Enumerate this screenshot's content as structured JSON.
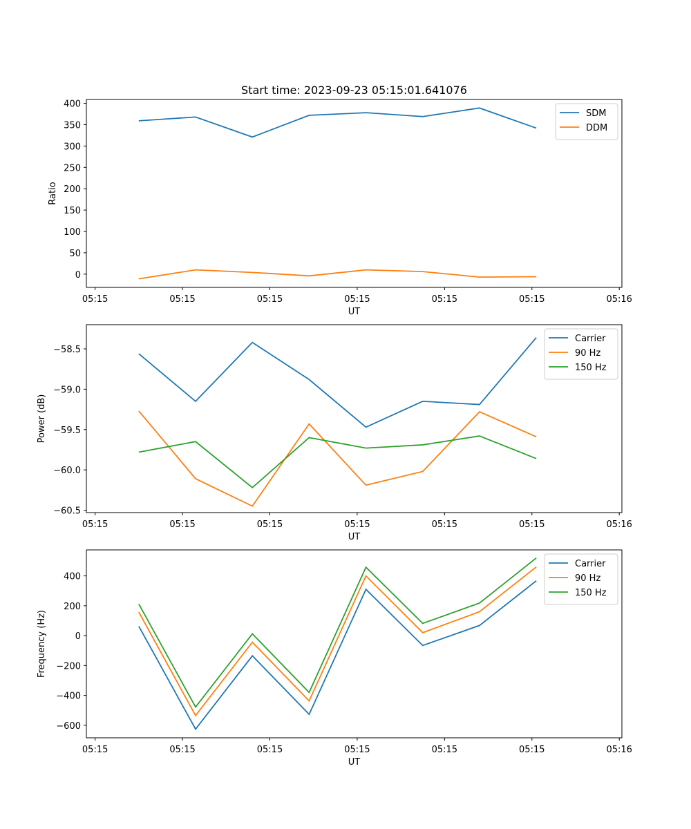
{
  "chart_data": [
    {
      "type": "line",
      "title": "Start time: 2023-09-23 05:15:01.641076",
      "xlabel": "UT",
      "ylabel": "Ratio",
      "x_tick_labels": [
        "05:15",
        "05:15",
        "05:15",
        "05:15",
        "05:15",
        "05:15",
        "05:16"
      ],
      "x_ticks": [
        0,
        1,
        2,
        3,
        4,
        5,
        6
      ],
      "xlim": [
        -0.1,
        6.03
      ],
      "x": [
        0.5,
        1.15,
        1.8,
        2.45,
        3.1,
        3.75,
        4.4,
        5.05
      ],
      "ylim": [
        -31,
        409
      ],
      "y_ticks": [
        0,
        50,
        100,
        150,
        200,
        250,
        300,
        350,
        400
      ],
      "y_tick_labels": [
        "0",
        "50",
        "100",
        "150",
        "200",
        "250",
        "300",
        "350",
        "400"
      ],
      "legend_position": "top-right",
      "series": [
        {
          "name": "SDM",
          "color": "#1f77b4",
          "values": [
            359,
            368,
            321,
            372,
            378,
            369,
            389,
            342
          ]
        },
        {
          "name": "DDM",
          "color": "#ff7f0e",
          "values": [
            -11,
            10,
            4,
            -4,
            10,
            6,
            -7,
            -6
          ]
        }
      ]
    },
    {
      "type": "line",
      "title": "",
      "xlabel": "UT",
      "ylabel": "Power (dB)",
      "x_tick_labels": [
        "05:15",
        "05:15",
        "05:15",
        "05:15",
        "05:15",
        "05:15",
        "05:16"
      ],
      "x_ticks": [
        0,
        1,
        2,
        3,
        4,
        5,
        6
      ],
      "xlim": [
        -0.1,
        6.03
      ],
      "x": [
        0.5,
        1.15,
        1.8,
        2.45,
        3.1,
        3.75,
        4.4,
        5.05
      ],
      "ylim": [
        -60.53,
        -58.2
      ],
      "y_ticks": [
        -60.5,
        -60.0,
        -59.5,
        -59.0,
        -58.5
      ],
      "y_tick_labels": [
        "−60.5",
        "−60.0",
        "−59.5",
        "−59.0",
        "−58.5"
      ],
      "legend_position": "top-right",
      "series": [
        {
          "name": "Carrier",
          "color": "#1f77b4",
          "values": [
            -58.56,
            -59.15,
            -58.42,
            -58.88,
            -59.47,
            -59.15,
            -59.19,
            -58.36
          ]
        },
        {
          "name": "90 Hz",
          "color": "#ff7f0e",
          "values": [
            -59.27,
            -60.11,
            -60.45,
            -59.43,
            -60.19,
            -60.02,
            -59.28,
            -59.59
          ]
        },
        {
          "name": "150 Hz",
          "color": "#2ca02c",
          "values": [
            -59.78,
            -59.65,
            -60.22,
            -59.6,
            -59.73,
            -59.69,
            -59.58,
            -59.86
          ]
        }
      ]
    },
    {
      "type": "line",
      "title": "",
      "xlabel": "UT",
      "ylabel": "Frequency (Hz)",
      "x_tick_labels": [
        "05:15",
        "05:15",
        "05:15",
        "05:15",
        "05:15",
        "05:15",
        "05:16"
      ],
      "x_ticks": [
        0,
        1,
        2,
        3,
        4,
        5,
        6
      ],
      "xlim": [
        -0.1,
        6.03
      ],
      "x": [
        0.5,
        1.15,
        1.8,
        2.45,
        3.1,
        3.75,
        4.4,
        5.05
      ],
      "ylim": [
        -684,
        574
      ],
      "y_ticks": [
        -600,
        -400,
        -200,
        0,
        200,
        400
      ],
      "y_tick_labels": [
        "−600",
        "−400",
        "−200",
        "0",
        "200",
        "400"
      ],
      "legend_position": "top-right",
      "series": [
        {
          "name": "Carrier",
          "color": "#1f77b4",
          "values": [
            63,
            -626,
            -135,
            -527,
            310,
            -66,
            68,
            367
          ]
        },
        {
          "name": "90 Hz",
          "color": "#ff7f0e",
          "values": [
            158,
            -535,
            -44,
            -437,
            400,
            20,
            160,
            460
          ]
        },
        {
          "name": "150 Hz",
          "color": "#2ca02c",
          "values": [
            212,
            -478,
            12,
            -380,
            458,
            82,
            218,
            520
          ]
        }
      ]
    }
  ]
}
